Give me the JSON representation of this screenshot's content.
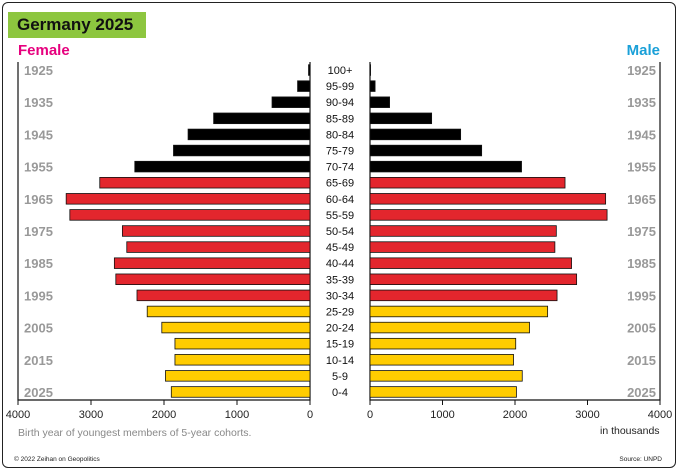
{
  "chart_data": {
    "type": "bar",
    "title": "Germany 2025",
    "orientation": "horizontal population pyramid",
    "categories": [
      "100+",
      "95-99",
      "90-94",
      "85-89",
      "80-84",
      "75-79",
      "70-74",
      "65-69",
      "60-64",
      "55-59",
      "50-54",
      "45-49",
      "40-44",
      "35-39",
      "30-34",
      "25-29",
      "20-24",
      "15-19",
      "10-14",
      "5-9",
      "0-4"
    ],
    "series": [
      {
        "name": "Female",
        "values": [
          20,
          170,
          520,
          1320,
          1670,
          1870,
          2400,
          2880,
          3340,
          3290,
          2570,
          2510,
          2680,
          2660,
          2370,
          2230,
          2030,
          1850,
          1850,
          1980,
          1900
        ]
      },
      {
        "name": "Male",
        "values": [
          8,
          70,
          270,
          850,
          1250,
          1540,
          2090,
          2690,
          3250,
          3270,
          2570,
          2550,
          2780,
          2850,
          2580,
          2450,
          2200,
          2010,
          1980,
          2100,
          2020
        ]
      }
    ],
    "bar_colors": [
      "#000000",
      "#000000",
      "#000000",
      "#000000",
      "#000000",
      "#000000",
      "#000000",
      "#e3262d",
      "#e3262d",
      "#e3262d",
      "#e3262d",
      "#e3262d",
      "#e3262d",
      "#e3262d",
      "#e3262d",
      "#ffcc00",
      "#ffcc00",
      "#ffcc00",
      "#ffcc00",
      "#ffcc00",
      "#ffcc00"
    ],
    "year_labels": [
      "1925",
      "1935",
      "1945",
      "1955",
      "1965",
      "1975",
      "1985",
      "1995",
      "2005",
      "2015",
      "2025"
    ],
    "female_ticks": [
      "4000",
      "3000",
      "2000",
      "1000",
      "0"
    ],
    "male_ticks": [
      "0",
      "1000",
      "2000",
      "3000",
      "4000"
    ],
    "xlim": [
      0,
      4000
    ],
    "female_label": "Female",
    "male_label": "Male",
    "axis_unit": "in thousands",
    "axis_note": "Birth year of youngest members of 5-year cohorts.",
    "colors": {
      "female": "#e6007e",
      "male": "#1aa0d8",
      "title_bg": "#8dc63f",
      "old": "#000000",
      "middle": "#e3262d",
      "young": "#ffcc00"
    }
  },
  "footer": {
    "copyright": "© 2022 Zeihan on Geopolitics",
    "source": "Source: UNPD"
  }
}
